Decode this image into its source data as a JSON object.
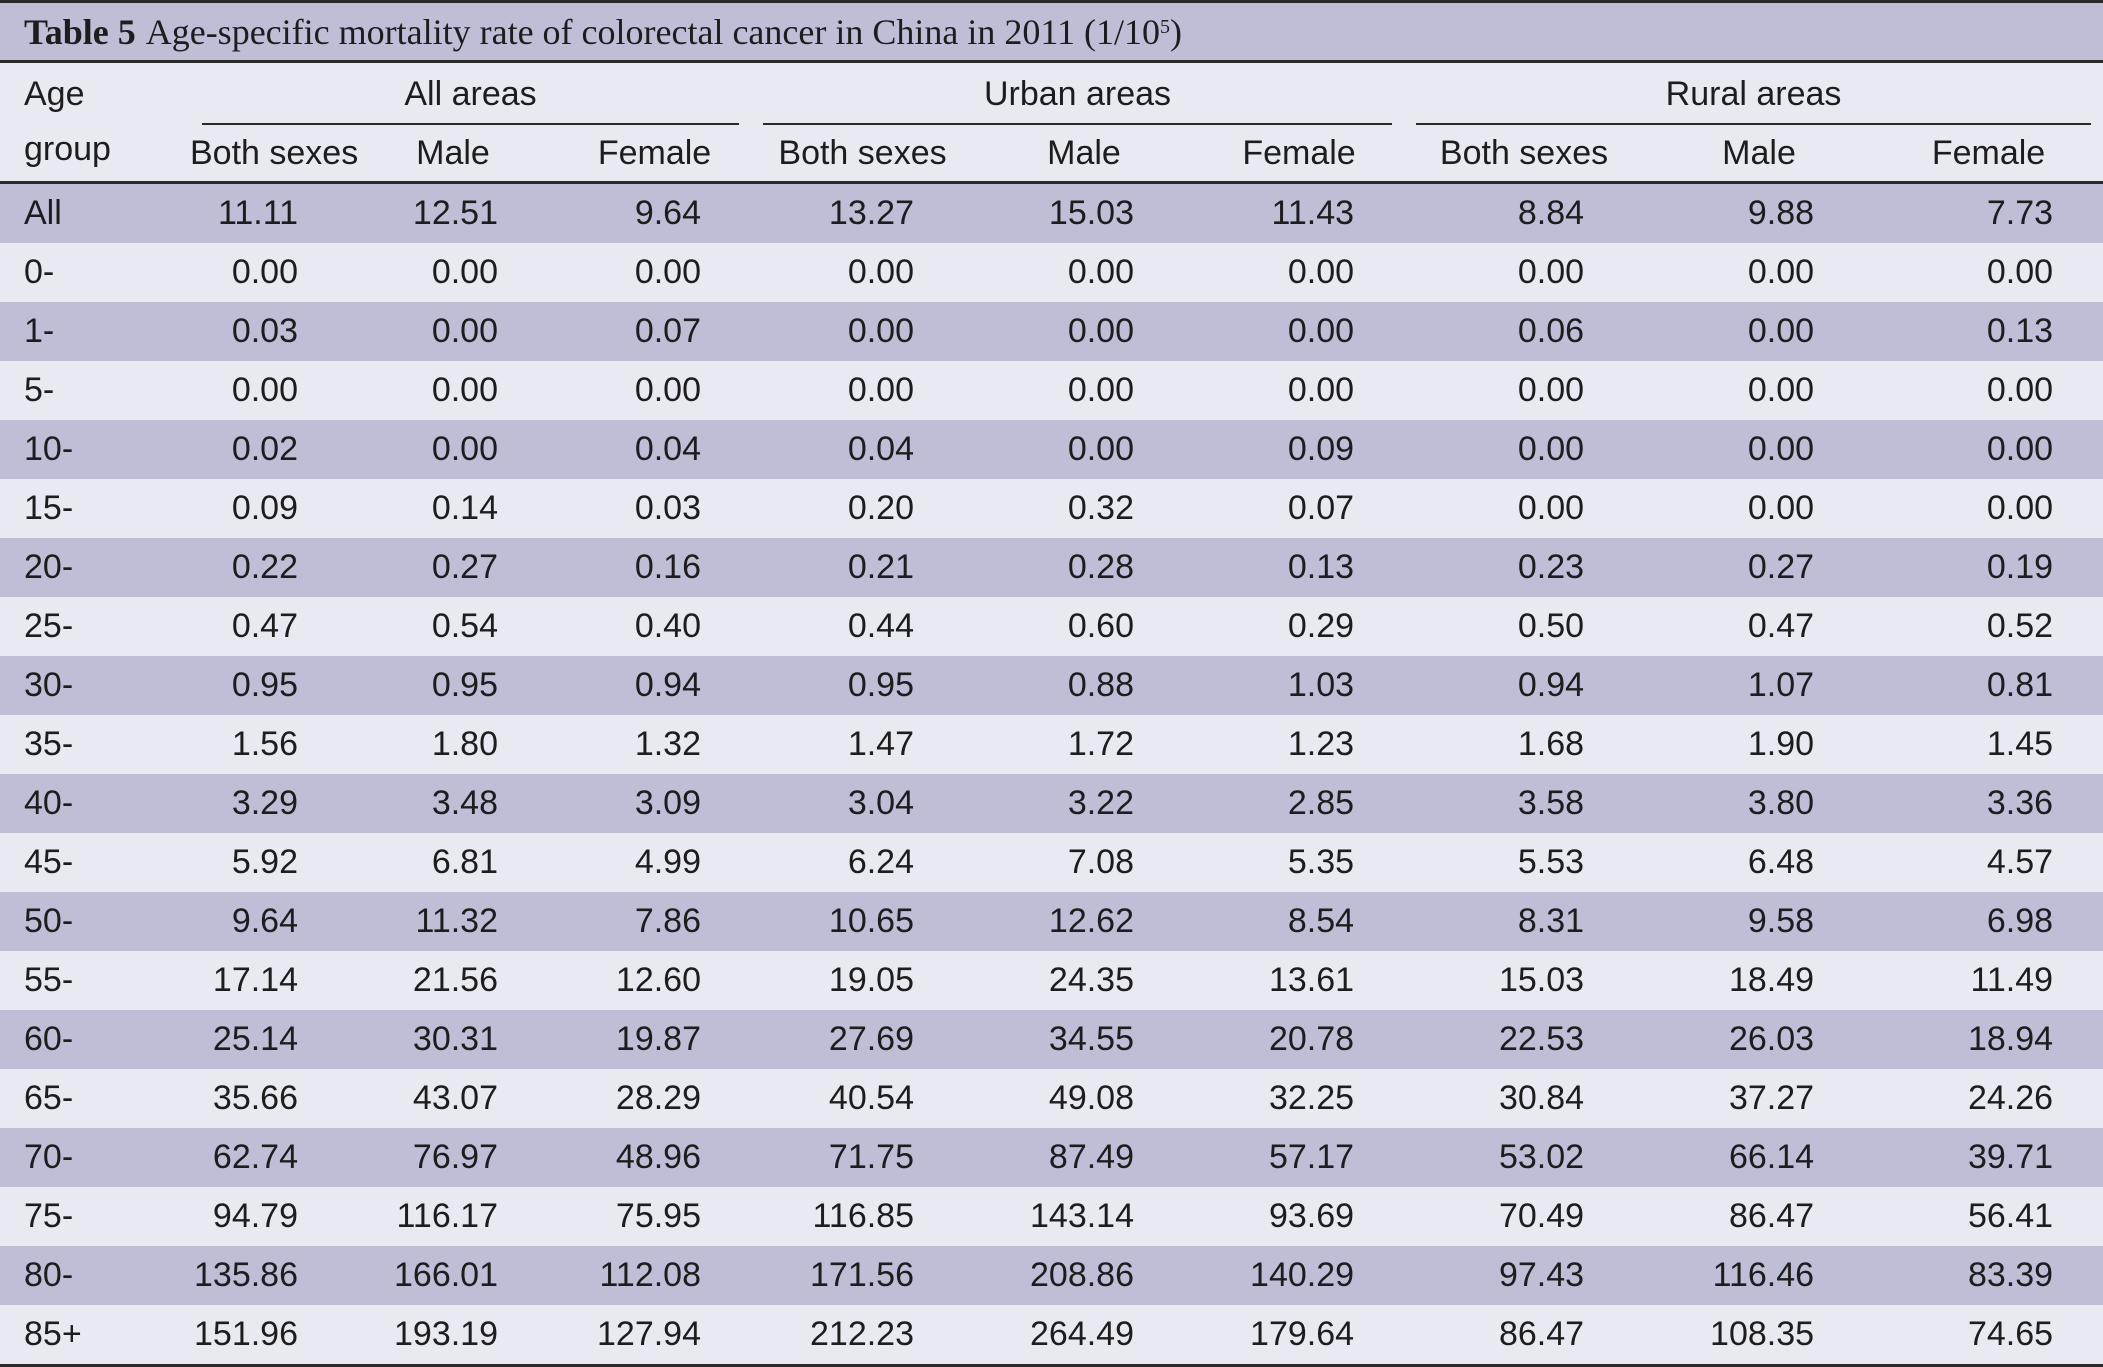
{
  "caption": {
    "label": "Table 5",
    "text": "Age-specific mortality rate of colorectal cancer in China in 2011 (1/10",
    "sup": "5",
    "close": ")"
  },
  "header": {
    "age_line1": "Age",
    "age_line2": "group",
    "groups": [
      "All areas",
      "Urban areas",
      "Rural areas"
    ],
    "subs": [
      "Both sexes",
      "Male",
      "Female"
    ]
  },
  "rows": [
    [
      "All",
      "11.11",
      "12.51",
      "9.64",
      "13.27",
      "15.03",
      "11.43",
      "8.84",
      "9.88",
      "7.73"
    ],
    [
      "0-",
      "0.00",
      "0.00",
      "0.00",
      "0.00",
      "0.00",
      "0.00",
      "0.00",
      "0.00",
      "0.00"
    ],
    [
      "1-",
      "0.03",
      "0.00",
      "0.07",
      "0.00",
      "0.00",
      "0.00",
      "0.06",
      "0.00",
      "0.13"
    ],
    [
      "5-",
      "0.00",
      "0.00",
      "0.00",
      "0.00",
      "0.00",
      "0.00",
      "0.00",
      "0.00",
      "0.00"
    ],
    [
      "10-",
      "0.02",
      "0.00",
      "0.04",
      "0.04",
      "0.00",
      "0.09",
      "0.00",
      "0.00",
      "0.00"
    ],
    [
      "15-",
      "0.09",
      "0.14",
      "0.03",
      "0.20",
      "0.32",
      "0.07",
      "0.00",
      "0.00",
      "0.00"
    ],
    [
      "20-",
      "0.22",
      "0.27",
      "0.16",
      "0.21",
      "0.28",
      "0.13",
      "0.23",
      "0.27",
      "0.19"
    ],
    [
      "25-",
      "0.47",
      "0.54",
      "0.40",
      "0.44",
      "0.60",
      "0.29",
      "0.50",
      "0.47",
      "0.52"
    ],
    [
      "30-",
      "0.95",
      "0.95",
      "0.94",
      "0.95",
      "0.88",
      "1.03",
      "0.94",
      "1.07",
      "0.81"
    ],
    [
      "35-",
      "1.56",
      "1.80",
      "1.32",
      "1.47",
      "1.72",
      "1.23",
      "1.68",
      "1.90",
      "1.45"
    ],
    [
      "40-",
      "3.29",
      "3.48",
      "3.09",
      "3.04",
      "3.22",
      "2.85",
      "3.58",
      "3.80",
      "3.36"
    ],
    [
      "45-",
      "5.92",
      "6.81",
      "4.99",
      "6.24",
      "7.08",
      "5.35",
      "5.53",
      "6.48",
      "4.57"
    ],
    [
      "50-",
      "9.64",
      "11.32",
      "7.86",
      "10.65",
      "12.62",
      "8.54",
      "8.31",
      "9.58",
      "6.98"
    ],
    [
      "55-",
      "17.14",
      "21.56",
      "12.60",
      "19.05",
      "24.35",
      "13.61",
      "15.03",
      "18.49",
      "11.49"
    ],
    [
      "60-",
      "25.14",
      "30.31",
      "19.87",
      "27.69",
      "34.55",
      "20.78",
      "22.53",
      "26.03",
      "18.94"
    ],
    [
      "65-",
      "35.66",
      "43.07",
      "28.29",
      "40.54",
      "49.08",
      "32.25",
      "30.84",
      "37.27",
      "24.26"
    ],
    [
      "70-",
      "62.74",
      "76.97",
      "48.96",
      "71.75",
      "87.49",
      "57.17",
      "53.02",
      "66.14",
      "39.71"
    ],
    [
      "75-",
      "94.79",
      "116.17",
      "75.95",
      "116.85",
      "143.14",
      "93.69",
      "70.49",
      "86.47",
      "56.41"
    ],
    [
      "80-",
      "135.86",
      "166.01",
      "112.08",
      "171.56",
      "208.86",
      "140.29",
      "97.43",
      "116.46",
      "83.39"
    ],
    [
      "85+",
      "151.96",
      "193.19",
      "127.94",
      "212.23",
      "264.49",
      "179.64",
      "86.47",
      "108.35",
      "74.65"
    ]
  ]
}
